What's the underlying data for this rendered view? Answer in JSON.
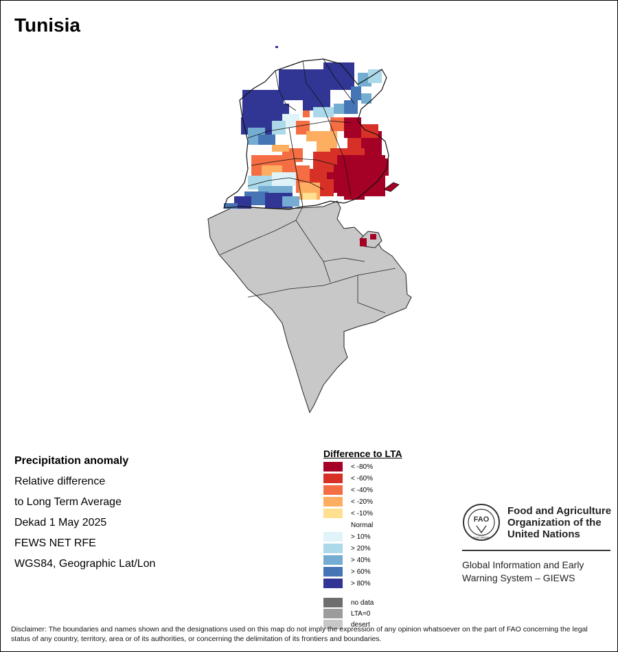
{
  "map": {
    "title": "Tunisia"
  },
  "info": {
    "heading": "Precipitation anomaly",
    "line1": "Relative difference",
    "line2": "to Long Term Average",
    "line3": "Dekad 1 May 2025",
    "line4": "FEWS NET RFE",
    "line5": "WGS84, Geographic Lat/Lon"
  },
  "legend": {
    "title": "Difference to LTA",
    "items": [
      {
        "label": "< -80%",
        "color": "#a50026"
      },
      {
        "label": "< -60%",
        "color": "#d73027"
      },
      {
        "label": "< -40%",
        "color": "#f46d43"
      },
      {
        "label": "< -20%",
        "color": "#fdae61"
      },
      {
        "label": "< -10%",
        "color": "#fee090"
      },
      {
        "label": "Normal",
        "color": "#ffffff"
      },
      {
        "label": "> 10%",
        "color": "#e0f3f8"
      },
      {
        "label": "> 20%",
        "color": "#abd9e9"
      },
      {
        "label": "> 40%",
        "color": "#74add1"
      },
      {
        "label": "> 60%",
        "color": "#4575b4"
      },
      {
        "label": "> 80%",
        "color": "#313695"
      },
      {
        "label": "no data",
        "color": "#6e6e6e"
      },
      {
        "label": "LTA=0",
        "color": "#9c9c9c"
      },
      {
        "label": "desert",
        "color": "#c8c8c8"
      }
    ]
  },
  "branding": {
    "org_line1": "Food and Agriculture",
    "org_line2": "Organization of the",
    "org_line3": "United Nations",
    "logo_text": "FAO",
    "logo_motto": "FIAT PANIS",
    "system_line1": "Global Information and Early",
    "system_line2": "Warning System – GIEWS"
  },
  "disclaimer": "Disclaimer: The boundaries and names shown and the designations used on this map do not imply the expression of any opinion whatsoever on the part of FAO concerning the legal status of any country, territory, area or of its authorities, or concerning the delimitation of its frontiers and boundaries."
}
